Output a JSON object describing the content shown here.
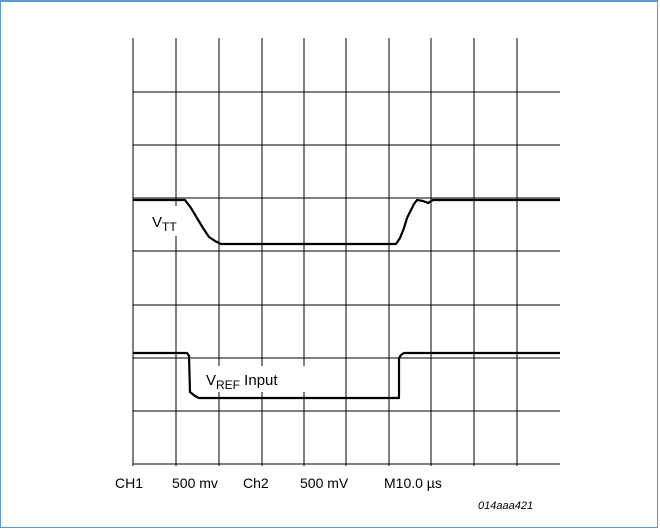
{
  "figure": {
    "figure_id": "014aaa421",
    "axis_labels": [
      "CH1",
      "500 mv",
      "Ch2",
      "500 mV",
      "M10.0 µs"
    ],
    "traces": [
      {
        "main": "V",
        "subscript": "TT",
        "suffix": ""
      },
      {
        "main": "V",
        "subscript": "REF",
        "suffix": " Input"
      }
    ],
    "line_color": "#000000",
    "frame_color": "#5b9bd5"
  }
}
